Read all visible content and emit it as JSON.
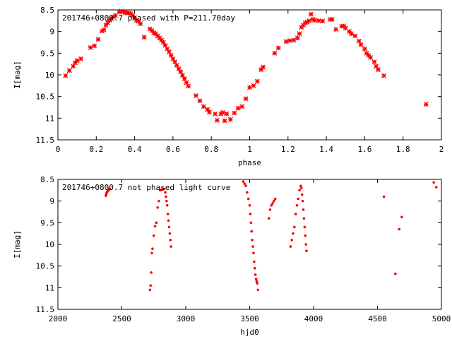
{
  "chart_data": [
    {
      "type": "scatter",
      "title": "201746+0800.7 phased with P=211.70day",
      "xlabel": "phase",
      "ylabel": "I[mag]",
      "xlim": [
        0,
        2
      ],
      "ylim": [
        8.5,
        11.5
      ],
      "y_inverted": true,
      "xticks": [
        "0",
        "0.2",
        "0.4",
        "0.6",
        "0.8",
        "1",
        "1.2",
        "1.4",
        "1.6",
        "1.8",
        "2"
      ],
      "yticks": [
        "8.5",
        "9",
        "9.5",
        "10",
        "10.5",
        "11",
        "11.5"
      ],
      "marker": "star",
      "color": "#ff0000",
      "points": [
        [
          0.04,
          10.02
        ],
        [
          0.06,
          9.9
        ],
        [
          0.08,
          9.8
        ],
        [
          0.09,
          9.72
        ],
        [
          0.1,
          9.67
        ],
        [
          0.12,
          9.63
        ],
        [
          0.17,
          9.37
        ],
        [
          0.19,
          9.33
        ],
        [
          0.21,
          9.18
        ],
        [
          0.23,
          8.99
        ],
        [
          0.24,
          8.96
        ],
        [
          0.25,
          8.85
        ],
        [
          0.26,
          8.8
        ],
        [
          0.27,
          8.74
        ],
        [
          0.28,
          8.7
        ],
        [
          0.29,
          8.66
        ],
        [
          0.3,
          8.63
        ],
        [
          0.32,
          8.55
        ],
        [
          0.33,
          8.53
        ],
        [
          0.34,
          8.54
        ],
        [
          0.35,
          8.56
        ],
        [
          0.36,
          8.57
        ],
        [
          0.37,
          8.57
        ],
        [
          0.38,
          8.59
        ],
        [
          0.39,
          8.63
        ],
        [
          0.4,
          8.68
        ],
        [
          0.41,
          8.74
        ],
        [
          0.42,
          8.76
        ],
        [
          0.43,
          8.82
        ],
        [
          0.45,
          9.13
        ],
        [
          0.48,
          8.94
        ],
        [
          0.49,
          8.98
        ],
        [
          0.5,
          9.03
        ],
        [
          0.51,
          9.05
        ],
        [
          0.52,
          9.1
        ],
        [
          0.53,
          9.15
        ],
        [
          0.54,
          9.2
        ],
        [
          0.55,
          9.25
        ],
        [
          0.56,
          9.32
        ],
        [
          0.57,
          9.4
        ],
        [
          0.58,
          9.47
        ],
        [
          0.59,
          9.55
        ],
        [
          0.6,
          9.63
        ],
        [
          0.61,
          9.7
        ],
        [
          0.62,
          9.78
        ],
        [
          0.63,
          9.86
        ],
        [
          0.64,
          9.93
        ],
        [
          0.65,
          10.01
        ],
        [
          0.66,
          10.09
        ],
        [
          0.67,
          10.18
        ],
        [
          0.68,
          10.26
        ],
        [
          0.72,
          10.48
        ],
        [
          0.74,
          10.6
        ],
        [
          0.76,
          10.73
        ],
        [
          0.78,
          10.8
        ],
        [
          0.79,
          10.86
        ],
        [
          0.82,
          10.9
        ],
        [
          0.83,
          11.05
        ],
        [
          0.85,
          10.9
        ],
        [
          0.86,
          10.87
        ],
        [
          0.87,
          11.06
        ],
        [
          0.88,
          10.9
        ],
        [
          0.9,
          11.03
        ],
        [
          0.92,
          10.88
        ],
        [
          0.94,
          10.77
        ],
        [
          0.96,
          10.73
        ],
        [
          0.98,
          10.55
        ],
        [
          1.0,
          10.29
        ],
        [
          1.02,
          10.25
        ],
        [
          1.04,
          10.15
        ],
        [
          1.06,
          9.88
        ],
        [
          1.07,
          9.82
        ],
        [
          1.13,
          9.5
        ],
        [
          1.15,
          9.38
        ],
        [
          1.19,
          9.23
        ],
        [
          1.21,
          9.21
        ],
        [
          1.23,
          9.2
        ],
        [
          1.25,
          9.15
        ],
        [
          1.26,
          9.05
        ],
        [
          1.27,
          8.9
        ],
        [
          1.28,
          8.85
        ],
        [
          1.29,
          8.8
        ],
        [
          1.3,
          8.78
        ],
        [
          1.31,
          8.75
        ],
        [
          1.32,
          8.6
        ],
        [
          1.33,
          8.72
        ],
        [
          1.34,
          8.74
        ],
        [
          1.36,
          8.75
        ],
        [
          1.38,
          8.76
        ],
        [
          1.42,
          8.72
        ],
        [
          1.43,
          8.72
        ],
        [
          1.45,
          8.95
        ],
        [
          1.48,
          8.88
        ],
        [
          1.49,
          8.87
        ],
        [
          1.5,
          8.92
        ],
        [
          1.52,
          9.0
        ],
        [
          1.53,
          9.05
        ],
        [
          1.55,
          9.1
        ],
        [
          1.57,
          9.22
        ],
        [
          1.58,
          9.3
        ],
        [
          1.6,
          9.4
        ],
        [
          1.61,
          9.5
        ],
        [
          1.62,
          9.55
        ],
        [
          1.63,
          9.6
        ],
        [
          1.65,
          9.7
        ],
        [
          1.66,
          9.8
        ],
        [
          1.67,
          9.88
        ],
        [
          1.7,
          10.02
        ],
        [
          1.92,
          10.68
        ]
      ]
    },
    {
      "type": "scatter",
      "title": "201746+0800.7 not phased light curve",
      "xlabel": "hjd0",
      "ylabel": "I[mag]",
      "xlim": [
        2000,
        5000
      ],
      "ylim": [
        8.5,
        11.5
      ],
      "y_inverted": true,
      "xticks": [
        "2000",
        "2500",
        "3000",
        "3500",
        "4000",
        "4500",
        "5000"
      ],
      "yticks": [
        "8.5",
        "9",
        "9.5",
        "10",
        "10.5",
        "11",
        "11.5"
      ],
      "marker": "dot",
      "color": "#ff0000",
      "points": [
        [
          2375,
          8.88
        ],
        [
          2378,
          8.85
        ],
        [
          2380,
          8.82
        ],
        [
          2383,
          8.8
        ],
        [
          2386,
          8.78
        ],
        [
          2390,
          8.77
        ],
        [
          2395,
          8.75
        ],
        [
          2400,
          8.73
        ],
        [
          2405,
          8.72
        ],
        [
          2720,
          11.05
        ],
        [
          2725,
          10.95
        ],
        [
          2730,
          10.65
        ],
        [
          2735,
          10.2
        ],
        [
          2740,
          10.1
        ],
        [
          2750,
          9.8
        ],
        [
          2760,
          9.58
        ],
        [
          2770,
          9.5
        ],
        [
          2780,
          9.15
        ],
        [
          2790,
          9.0
        ],
        [
          2800,
          8.75
        ],
        [
          2810,
          8.74
        ],
        [
          2820,
          8.73
        ],
        [
          2830,
          8.72
        ],
        [
          2840,
          8.8
        ],
        [
          2845,
          8.9
        ],
        [
          2850,
          9.0
        ],
        [
          2855,
          9.1
        ],
        [
          2860,
          9.3
        ],
        [
          2865,
          9.45
        ],
        [
          2870,
          9.6
        ],
        [
          2875,
          9.75
        ],
        [
          2880,
          9.9
        ],
        [
          2885,
          10.05
        ],
        [
          3450,
          8.55
        ],
        [
          3460,
          8.6
        ],
        [
          3470,
          8.65
        ],
        [
          3480,
          8.8
        ],
        [
          3490,
          8.95
        ],
        [
          3500,
          9.1
        ],
        [
          3505,
          9.3
        ],
        [
          3510,
          9.5
        ],
        [
          3515,
          9.7
        ],
        [
          3520,
          9.9
        ],
        [
          3525,
          10.05
        ],
        [
          3530,
          10.2
        ],
        [
          3535,
          10.4
        ],
        [
          3540,
          10.55
        ],
        [
          3545,
          10.7
        ],
        [
          3550,
          10.8
        ],
        [
          3555,
          10.85
        ],
        [
          3560,
          10.9
        ],
        [
          3565,
          11.05
        ],
        [
          3650,
          9.4
        ],
        [
          3660,
          9.2
        ],
        [
          3670,
          9.1
        ],
        [
          3680,
          9.05
        ],
        [
          3690,
          9.0
        ],
        [
          3700,
          8.95
        ],
        [
          3820,
          10.05
        ],
        [
          3830,
          9.9
        ],
        [
          3840,
          9.75
        ],
        [
          3850,
          9.6
        ],
        [
          3860,
          9.3
        ],
        [
          3870,
          9.1
        ],
        [
          3880,
          8.95
        ],
        [
          3890,
          8.75
        ],
        [
          3900,
          8.65
        ],
        [
          3905,
          8.7
        ],
        [
          3910,
          8.85
        ],
        [
          3915,
          9.0
        ],
        [
          3920,
          9.2
        ],
        [
          3925,
          9.4
        ],
        [
          3930,
          9.6
        ],
        [
          3935,
          9.8
        ],
        [
          3940,
          10.0
        ],
        [
          3945,
          10.15
        ],
        [
          4550,
          8.9
        ],
        [
          4640,
          10.68
        ],
        [
          4670,
          9.65
        ],
        [
          4690,
          9.37
        ],
        [
          4940,
          8.57
        ],
        [
          4960,
          8.68
        ]
      ]
    }
  ]
}
